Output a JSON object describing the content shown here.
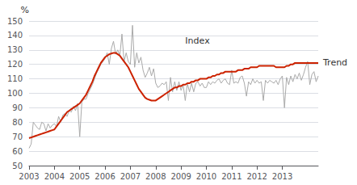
{
  "chart_data": {
    "type": "line",
    "categories": [
      "2003",
      null,
      null,
      null,
      null,
      null,
      null,
      null,
      null,
      null,
      null,
      null,
      "2004",
      null,
      null,
      null,
      null,
      null,
      null,
      null,
      null,
      null,
      null,
      null,
      "2005",
      null,
      null,
      null,
      null,
      null,
      null,
      null,
      null,
      null,
      null,
      null,
      "2006",
      null,
      null,
      null,
      null,
      null,
      null,
      null,
      null,
      null,
      null,
      null,
      "2007",
      null,
      null,
      null,
      null,
      null,
      null,
      null,
      null,
      null,
      null,
      null,
      "2008",
      null,
      null,
      null,
      null,
      null,
      null,
      null,
      null,
      null,
      null,
      null,
      "2009",
      null,
      null,
      null,
      null,
      null,
      null,
      null,
      null,
      null,
      null,
      null,
      "2010",
      null,
      null,
      null,
      null,
      null,
      null,
      null,
      null,
      null,
      null,
      null,
      "2011",
      null,
      null,
      null,
      null,
      null,
      null,
      null,
      null,
      null,
      null,
      null,
      "2012",
      null,
      null,
      null,
      null,
      null,
      null,
      null,
      null,
      null,
      null,
      null,
      "2013",
      null,
      null,
      null,
      null,
      null,
      null,
      null,
      null,
      null,
      null,
      null,
      null,
      null,
      null,
      null,
      null,
      null
    ],
    "series": [
      {
        "name": "Index",
        "color": "#aaaaaa",
        "values": [
          62,
          65,
          80,
          78,
          76,
          75,
          80,
          79,
          74,
          79,
          76,
          78,
          79,
          77,
          84,
          80,
          85,
          86,
          84,
          88,
          87,
          91,
          88,
          93,
          70,
          94,
          96,
          96,
          100,
          103,
          106,
          110,
          114,
          117,
          120,
          122,
          124,
          128,
          120,
          131,
          136,
          127,
          130,
          126,
          141,
          122,
          128,
          122,
          120,
          147,
          118,
          128,
          121,
          125,
          116,
          111,
          114,
          118,
          112,
          117,
          107,
          104,
          105,
          107,
          106,
          108,
          95,
          111,
          101,
          108,
          102,
          108,
          102,
          106,
          95,
          107,
          101,
          107,
          101,
          107,
          108,
          105,
          107,
          104,
          104,
          108,
          106,
          108,
          107,
          109,
          110,
          107,
          109,
          110,
          107,
          106,
          116,
          107,
          108,
          107,
          111,
          112,
          107,
          98,
          108,
          106,
          110,
          107,
          109,
          107,
          108,
          95,
          109,
          107,
          109,
          108,
          107,
          109,
          106,
          110,
          112,
          90,
          111,
          106,
          112,
          108,
          113,
          110,
          114,
          109,
          113,
          118,
          122,
          106,
          113,
          115,
          108,
          112
        ]
      },
      {
        "name": "Trend",
        "color": "#cc2200",
        "values": [
          69,
          69.5,
          70,
          70.5,
          71,
          71.5,
          72,
          72.5,
          73,
          73.5,
          74,
          74.5,
          75,
          77,
          79,
          81,
          83,
          85,
          87,
          88,
          89,
          90,
          91,
          92,
          93,
          95,
          97,
          99,
          102,
          105,
          108,
          112,
          115,
          118,
          121,
          123,
          125,
          126,
          127,
          127.5,
          128,
          128,
          127,
          126,
          124,
          122,
          120,
          118,
          115,
          112,
          109,
          106,
          103,
          101,
          99,
          97,
          96,
          95.5,
          95,
          95,
          95,
          96,
          97,
          98,
          99,
          100,
          101,
          102,
          103,
          104,
          104,
          105,
          105,
          106,
          106,
          107,
          107,
          108,
          108,
          109,
          109,
          110,
          110,
          110,
          110,
          111,
          111,
          112,
          112,
          113,
          113,
          114,
          114,
          115,
          115,
          115,
          115,
          115,
          115,
          116,
          116,
          116,
          117,
          117,
          117,
          118,
          118,
          118,
          118,
          119,
          119,
          119,
          119,
          119,
          119,
          119,
          119,
          118,
          118,
          118,
          118,
          118,
          119,
          119,
          120,
          120,
          121,
          121,
          121,
          121,
          121,
          121,
          121,
          121,
          121,
          121,
          121,
          121
        ]
      }
    ],
    "y_label": "%",
    "annotations": [
      {
        "text": "Index",
        "x": 74,
        "y": 133
      },
      {
        "text": "Trend",
        "y": 121
      }
    ],
    "ylim": [
      50,
      150
    ],
    "yticks": [
      50,
      60,
      70,
      80,
      90,
      100,
      110,
      120,
      130,
      140,
      150
    ],
    "grid": true,
    "legend": false
  }
}
